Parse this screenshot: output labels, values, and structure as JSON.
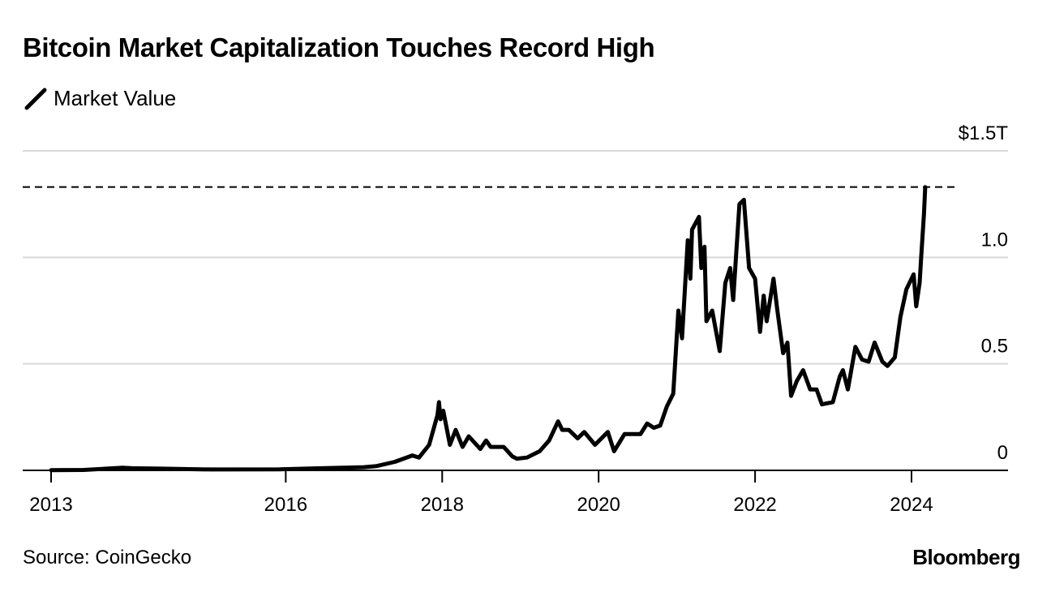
{
  "title": "Bitcoin Market Capitalization Touches Record High",
  "legend_label": "Market Value",
  "source": "Source: CoinGecko",
  "brand": "Bloomberg",
  "chart_data": {
    "type": "line",
    "title": "Bitcoin Market Capitalization Touches Record High",
    "xlabel": "",
    "ylabel": "",
    "ylim": [
      0,
      1.5
    ],
    "xlim": [
      "2013-01-01",
      "2024-07-01"
    ],
    "y_ticks": [
      {
        "value": 0,
        "label": "0"
      },
      {
        "value": 0.5,
        "label": "0.5"
      },
      {
        "value": 1.0,
        "label": "1.0"
      },
      {
        "value": 1.5,
        "label": "$1.5T"
      }
    ],
    "x_ticks": [
      {
        "value": "2013-01-01",
        "label": "2013"
      },
      {
        "value": "2016-01-01",
        "label": "2016"
      },
      {
        "value": "2018-01-01",
        "label": "2018"
      },
      {
        "value": "2020-01-01",
        "label": "2020"
      },
      {
        "value": "2022-01-01",
        "label": "2022"
      },
      {
        "value": "2024-01-01",
        "label": "2024"
      }
    ],
    "grid": true,
    "reference_line": {
      "value": 1.33,
      "style": "dashed"
    },
    "series": [
      {
        "name": "Market Value",
        "color": "#000000",
        "points": [
          [
            "2013-01-01",
            0.001
          ],
          [
            "2013-06-01",
            0.002
          ],
          [
            "2013-11-30",
            0.012
          ],
          [
            "2014-01-15",
            0.01
          ],
          [
            "2014-06-01",
            0.008
          ],
          [
            "2015-01-15",
            0.004
          ],
          [
            "2015-12-01",
            0.005
          ],
          [
            "2016-06-15",
            0.01
          ],
          [
            "2016-12-31",
            0.015
          ],
          [
            "2017-03-01",
            0.02
          ],
          [
            "2017-05-25",
            0.04
          ],
          [
            "2017-08-15",
            0.07
          ],
          [
            "2017-09-15",
            0.06
          ],
          [
            "2017-11-01",
            0.12
          ],
          [
            "2017-12-10",
            0.26
          ],
          [
            "2017-12-17",
            0.32
          ],
          [
            "2017-12-24",
            0.24
          ],
          [
            "2018-01-06",
            0.28
          ],
          [
            "2018-02-06",
            0.12
          ],
          [
            "2018-03-05",
            0.19
          ],
          [
            "2018-04-06",
            0.11
          ],
          [
            "2018-05-05",
            0.16
          ],
          [
            "2018-06-28",
            0.1
          ],
          [
            "2018-07-25",
            0.14
          ],
          [
            "2018-08-15",
            0.11
          ],
          [
            "2018-10-15",
            0.11
          ],
          [
            "2018-11-25",
            0.065
          ],
          [
            "2018-12-15",
            0.055
          ],
          [
            "2019-02-01",
            0.06
          ],
          [
            "2019-04-01",
            0.09
          ],
          [
            "2019-05-15",
            0.14
          ],
          [
            "2019-06-26",
            0.23
          ],
          [
            "2019-07-15",
            0.19
          ],
          [
            "2019-08-15",
            0.19
          ],
          [
            "2019-09-25",
            0.15
          ],
          [
            "2019-10-26",
            0.18
          ],
          [
            "2019-12-15",
            0.12
          ],
          [
            "2020-02-13",
            0.18
          ],
          [
            "2020-03-13",
            0.09
          ],
          [
            "2020-05-01",
            0.17
          ],
          [
            "2020-06-15",
            0.17
          ],
          [
            "2020-07-15",
            0.17
          ],
          [
            "2020-08-15",
            0.22
          ],
          [
            "2020-09-15",
            0.2
          ],
          [
            "2020-10-15",
            0.21
          ],
          [
            "2020-11-15",
            0.3
          ],
          [
            "2020-12-15",
            0.36
          ],
          [
            "2021-01-08",
            0.75
          ],
          [
            "2021-01-25",
            0.62
          ],
          [
            "2021-02-21",
            1.08
          ],
          [
            "2021-03-05",
            0.9
          ],
          [
            "2021-03-13",
            1.13
          ],
          [
            "2021-04-14",
            1.19
          ],
          [
            "2021-04-25",
            0.95
          ],
          [
            "2021-05-10",
            1.05
          ],
          [
            "2021-05-19",
            0.7
          ],
          [
            "2021-06-15",
            0.75
          ],
          [
            "2021-07-20",
            0.56
          ],
          [
            "2021-08-15",
            0.88
          ],
          [
            "2021-09-07",
            0.95
          ],
          [
            "2021-09-21",
            0.8
          ],
          [
            "2021-10-20",
            1.25
          ],
          [
            "2021-11-10",
            1.27
          ],
          [
            "2021-12-04",
            0.95
          ],
          [
            "2022-01-01",
            0.9
          ],
          [
            "2022-01-24",
            0.65
          ],
          [
            "2022-02-10",
            0.82
          ],
          [
            "2022-02-24",
            0.7
          ],
          [
            "2022-03-28",
            0.9
          ],
          [
            "2022-04-15",
            0.75
          ],
          [
            "2022-05-12",
            0.55
          ],
          [
            "2022-06-01",
            0.6
          ],
          [
            "2022-06-18",
            0.35
          ],
          [
            "2022-07-15",
            0.42
          ],
          [
            "2022-08-13",
            0.47
          ],
          [
            "2022-09-15",
            0.38
          ],
          [
            "2022-10-15",
            0.38
          ],
          [
            "2022-11-09",
            0.31
          ],
          [
            "2022-12-30",
            0.32
          ],
          [
            "2023-01-31",
            0.44
          ],
          [
            "2023-02-15",
            0.47
          ],
          [
            "2023-03-10",
            0.38
          ],
          [
            "2023-04-14",
            0.58
          ],
          [
            "2023-05-15",
            0.52
          ],
          [
            "2023-06-15",
            0.51
          ],
          [
            "2023-07-13",
            0.6
          ],
          [
            "2023-08-18",
            0.51
          ],
          [
            "2023-09-11",
            0.49
          ],
          [
            "2023-10-15",
            0.53
          ],
          [
            "2023-11-10",
            0.72
          ],
          [
            "2023-12-08",
            0.85
          ],
          [
            "2024-01-11",
            0.92
          ],
          [
            "2024-01-23",
            0.77
          ],
          [
            "2024-02-08",
            0.88
          ],
          [
            "2024-02-15",
            1.0
          ],
          [
            "2024-02-28",
            1.2
          ],
          [
            "2024-03-05",
            1.33
          ]
        ]
      }
    ]
  }
}
